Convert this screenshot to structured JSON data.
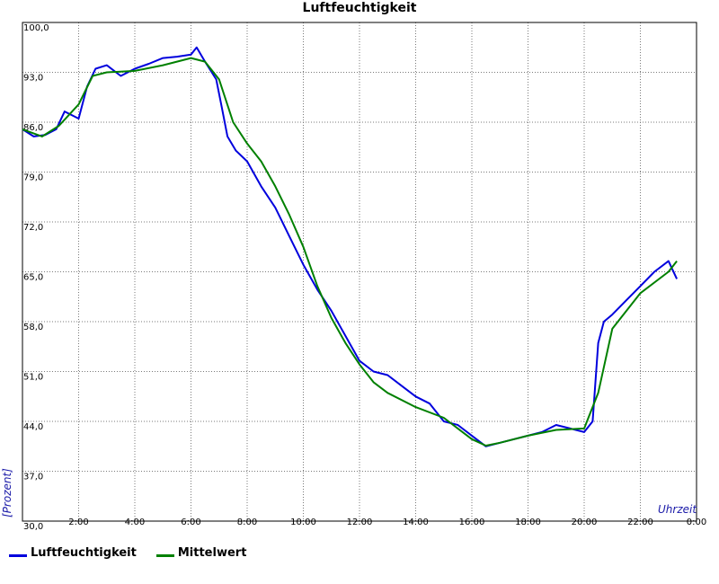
{
  "chart_data": {
    "type": "line",
    "title": "Luftfeuchtigkeit",
    "xlabel": "Uhrzeit",
    "ylabel": "[Prozent]",
    "xlim": [
      0,
      24
    ],
    "ylim": [
      30,
      100
    ],
    "x_ticks": [
      "2:00",
      "4:00",
      "6:00",
      "8:00",
      "10:00",
      "12:00",
      "14:00",
      "16:00",
      "18:00",
      "20:00",
      "22:00",
      "0:00"
    ],
    "y_ticks": [
      "30,0",
      "37,0",
      "44,0",
      "51,0",
      "58,0",
      "65,0",
      "72,0",
      "79,0",
      "86,0",
      "93,0",
      "100,0"
    ],
    "grid": true,
    "legend_position": "bottom-left",
    "series": [
      {
        "name": "Luftfeuchtigkeit",
        "color": "#0000dd",
        "x": [
          0,
          0.4,
          0.8,
          1.2,
          1.5,
          2.0,
          2.3,
          2.6,
          3.0,
          3.5,
          4.0,
          4.5,
          5.0,
          5.5,
          6.0,
          6.2,
          6.5,
          6.9,
          7.1,
          7.3,
          7.6,
          8.0,
          8.5,
          9.0,
          9.5,
          10.0,
          10.5,
          11.0,
          11.5,
          12.0,
          12.5,
          13.0,
          13.5,
          14.0,
          14.5,
          15.0,
          15.5,
          16.0,
          16.5,
          17.0,
          17.5,
          18.0,
          18.5,
          19.0,
          19.5,
          20.0,
          20.3,
          20.5,
          20.7,
          21.0,
          21.5,
          22.0,
          22.5,
          23.0,
          23.3
        ],
        "values": [
          85.0,
          84.0,
          84.2,
          85.0,
          87.5,
          86.5,
          91.0,
          93.5,
          94.0,
          92.5,
          93.5,
          94.2,
          95.0,
          95.2,
          95.5,
          96.5,
          94.5,
          92.0,
          88.0,
          84.0,
          82.0,
          80.5,
          77.0,
          74.0,
          70.0,
          66.0,
          62.5,
          59.5,
          56.0,
          52.5,
          51.0,
          50.5,
          49.0,
          47.5,
          46.5,
          44.0,
          43.5,
          42.0,
          40.5,
          41.0,
          41.5,
          42.0,
          42.5,
          43.5,
          43.0,
          42.5,
          44.0,
          55.0,
          58.0,
          59.0,
          61.0,
          63.0,
          65.0,
          66.5,
          64.0
        ]
      },
      {
        "name": "Mittelwert",
        "color": "#008000",
        "x": [
          0,
          0.7,
          1.3,
          2.0,
          2.5,
          3.0,
          4.0,
          5.0,
          6.0,
          6.5,
          7.0,
          7.5,
          8.0,
          8.5,
          9.0,
          9.5,
          10.0,
          10.5,
          11.0,
          11.5,
          12.0,
          12.5,
          13.0,
          14.0,
          15.0,
          15.5,
          16.0,
          16.5,
          17.0,
          18.0,
          19.0,
          20.0,
          20.5,
          21.0,
          22.0,
          23.0,
          23.3
        ],
        "values": [
          85.0,
          84.0,
          85.5,
          88.5,
          92.5,
          93.0,
          93.2,
          94.0,
          95.0,
          94.5,
          92.0,
          86.0,
          83.0,
          80.5,
          77.0,
          73.0,
          68.5,
          63.0,
          58.5,
          55.0,
          52.0,
          49.5,
          48.0,
          46.0,
          44.5,
          43.0,
          41.5,
          40.6,
          41.0,
          42.0,
          42.8,
          43.0,
          48.0,
          57.0,
          62.0,
          65.0,
          66.5
        ]
      }
    ]
  }
}
